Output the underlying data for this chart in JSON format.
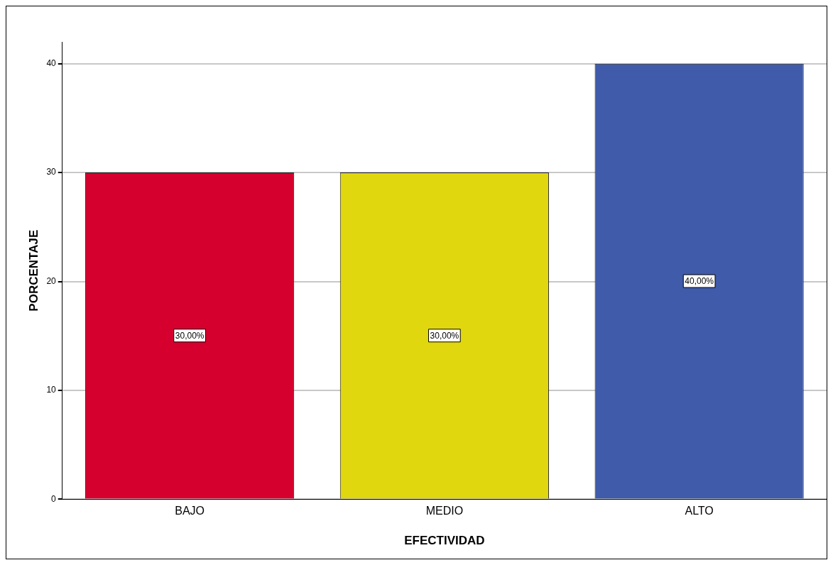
{
  "chart_data": {
    "type": "bar",
    "xlabel": "EFECTIVIDAD",
    "ylabel": "PORCENTAJE",
    "categories": [
      "BAJO",
      "MEDIO",
      "ALTO"
    ],
    "values": [
      30,
      30,
      40
    ],
    "colors": [
      "#d5002e",
      "#e0d70f",
      "#3f5ba9"
    ],
    "value_labels": [
      "30,00%",
      "30,00%",
      "40,00%"
    ],
    "ylim": [
      0,
      42
    ],
    "yticks": [
      0,
      10,
      20,
      30,
      40
    ],
    "grid": "y",
    "legend": false
  }
}
